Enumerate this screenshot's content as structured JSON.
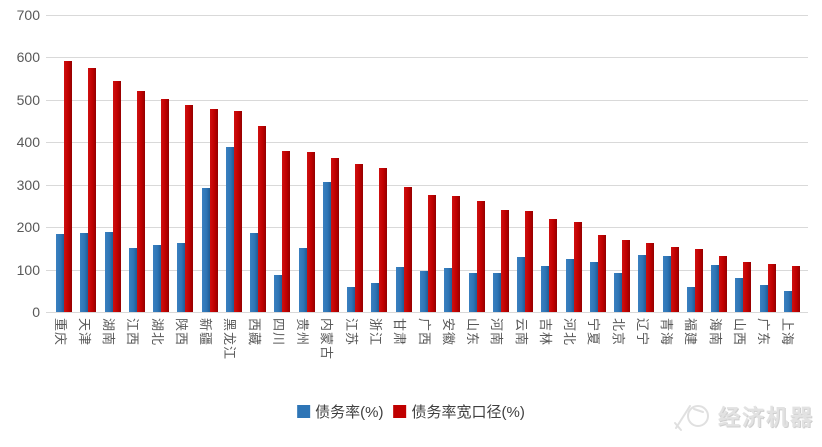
{
  "chart_data": {
    "type": "bar",
    "title": "",
    "xlabel": "",
    "ylabel": "",
    "categories": [
      "重庆",
      "天津",
      "湖南",
      "江西",
      "湖北",
      "陕西",
      "新疆",
      "黑龙江",
      "西藏",
      "四川",
      "贵州",
      "内蒙古",
      "江苏",
      "浙江",
      "甘肃",
      "广西",
      "安徽",
      "山东",
      "河南",
      "云南",
      "吉林",
      "河北",
      "宁夏",
      "北京",
      "辽宁",
      "青海",
      "福建",
      "海南",
      "山西",
      "广东",
      "上海"
    ],
    "series": [
      {
        "name": "债务率(%)",
        "color": "#2E75B6",
        "values": [
          183,
          186,
          189,
          151,
          159,
          163,
          293,
          389,
          187,
          88,
          151,
          306,
          60,
          69,
          105,
          97,
          104,
          91,
          92,
          130,
          109,
          126,
          117,
          93,
          135,
          132,
          58,
          110,
          81,
          64,
          50
        ]
      },
      {
        "name": "债务率宽口径(%)",
        "color": "#C00000",
        "values": [
          591,
          574,
          545,
          521,
          503,
          488,
          478,
          473,
          438,
          379,
          376,
          362,
          349,
          340,
          295,
          276,
          273,
          261,
          240,
          239,
          220,
          212,
          181,
          170,
          163,
          154,
          149,
          132,
          117,
          113,
          108
        ]
      }
    ],
    "ylim": [
      0,
      700
    ],
    "y_ticks": [
      0,
      100,
      200,
      300,
      400,
      500,
      600,
      700
    ],
    "grid": "horizontal",
    "legend_position": "bottom-center",
    "gridline_color": "#d9d9d9",
    "axis_label_color": "#595959"
  },
  "watermark": {
    "text": "经济机器",
    "color": "#e2e2e2"
  }
}
